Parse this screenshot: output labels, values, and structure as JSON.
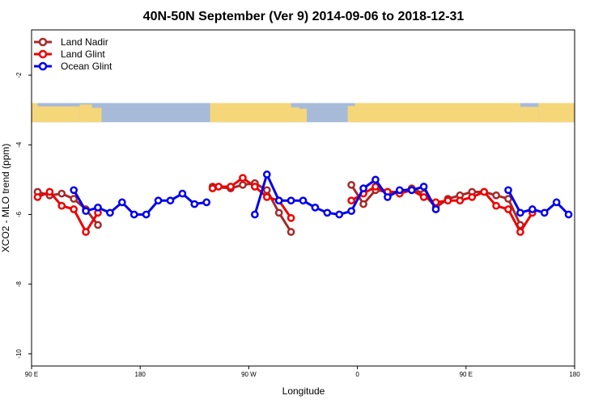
{
  "chart_data": {
    "type": "line",
    "title": "40N-50N September (Ver 9)   2014-09-06 to 2018-12-31",
    "xlabel": "Longitude",
    "ylabel": "XCO2 - MLO trend (ppm)",
    "x_ticks": [
      {
        "label": "90 E",
        "value": 0
      },
      {
        "label": "180",
        "value": 90
      },
      {
        "label": "90 W",
        "value": 180
      },
      {
        "label": "0",
        "value": 270
      },
      {
        "label": "90 E",
        "value": 360
      },
      {
        "label": "180",
        "value": 450
      }
    ],
    "y_ticks": [
      {
        "label": "-2",
        "value": -2
      },
      {
        "label": "-4",
        "value": -4
      },
      {
        "label": "-6",
        "value": -6
      },
      {
        "label": "-8",
        "value": -8
      },
      {
        "label": "-10",
        "value": -10
      }
    ],
    "xlim": [
      0,
      450
    ],
    "ylim": [
      -10.35,
      -0.7
    ],
    "map_strip": {
      "y_top": -2.8,
      "y_bottom": -3.35,
      "land_color": "#f5d77a",
      "ocean_color": "#a7bbd9"
    },
    "legend_position": "top-left",
    "series": [
      {
        "name": "Land Nadir",
        "color": "#a52a2a",
        "segments": [
          [
            [
              5,
              -5.35
            ],
            [
              15,
              -5.45
            ],
            [
              25,
              -5.4
            ],
            [
              35,
              -5.55
            ],
            [
              45,
              -5.85
            ],
            [
              55,
              -6.3
            ]
          ],
          [
            [
              150,
              -5.2
            ],
            [
              165,
              -5.25
            ],
            [
              175,
              -5.15
            ],
            [
              185,
              -5.1
            ],
            [
              195,
              -5.3
            ],
            [
              205,
              -5.95
            ],
            [
              215,
              -6.5
            ]
          ],
          [
            [
              265,
              -5.15
            ],
            [
              275,
              -5.7
            ],
            [
              285,
              -5.3
            ],
            [
              295,
              -5.35
            ],
            [
              305,
              -5.35
            ],
            [
              315,
              -5.25
            ],
            [
              325,
              -5.4
            ],
            [
              335,
              -5.8
            ],
            [
              345,
              -5.55
            ],
            [
              355,
              -5.45
            ],
            [
              365,
              -5.35
            ],
            [
              375,
              -5.35
            ],
            [
              385,
              -5.45
            ],
            [
              395,
              -5.55
            ],
            [
              405,
              -6.3
            ]
          ]
        ]
      },
      {
        "name": "Land Glint",
        "color": "#ee0000",
        "segments": [
          [
            [
              5,
              -5.5
            ],
            [
              15,
              -5.35
            ],
            [
              25,
              -5.75
            ],
            [
              35,
              -5.85
            ],
            [
              45,
              -6.5
            ],
            [
              55,
              -5.95
            ]
          ],
          [
            [
              150,
              -5.25
            ],
            [
              155,
              -5.2
            ],
            [
              165,
              -5.2
            ],
            [
              175,
              -4.95
            ],
            [
              185,
              -5.2
            ],
            [
              195,
              -5.5
            ],
            [
              205,
              -5.6
            ],
            [
              215,
              -6.1
            ]
          ],
          [
            [
              265,
              -5.6
            ],
            [
              275,
              -5.4
            ],
            [
              285,
              -5.2
            ],
            [
              295,
              -5.35
            ],
            [
              305,
              -5.4
            ],
            [
              315,
              -5.3
            ],
            [
              325,
              -5.5
            ],
            [
              335,
              -5.65
            ],
            [
              345,
              -5.6
            ],
            [
              355,
              -5.6
            ],
            [
              365,
              -5.5
            ],
            [
              375,
              -5.35
            ],
            [
              385,
              -5.75
            ],
            [
              395,
              -5.85
            ],
            [
              405,
              -6.5
            ],
            [
              415,
              -5.95
            ]
          ]
        ]
      },
      {
        "name": "Ocean Glint",
        "color": "#0000ee",
        "segments": [
          [
            [
              35,
              -5.3
            ],
            [
              45,
              -5.9
            ],
            [
              55,
              -5.8
            ],
            [
              65,
              -5.95
            ],
            [
              75,
              -5.65
            ],
            [
              85,
              -6.0
            ],
            [
              95,
              -6.0
            ],
            [
              105,
              -5.6
            ],
            [
              115,
              -5.6
            ],
            [
              125,
              -5.4
            ],
            [
              135,
              -5.7
            ],
            [
              145,
              -5.65
            ]
          ],
          [
            [
              185,
              -6.0
            ],
            [
              195,
              -4.85
            ],
            [
              205,
              -5.6
            ],
            [
              215,
              -5.6
            ],
            [
              225,
              -5.6
            ],
            [
              235,
              -5.8
            ],
            [
              245,
              -5.95
            ],
            [
              255,
              -6.0
            ],
            [
              265,
              -5.9
            ],
            [
              275,
              -5.25
            ],
            [
              285,
              -5.0
            ],
            [
              295,
              -5.5
            ],
            [
              305,
              -5.3
            ],
            [
              315,
              -5.3
            ],
            [
              325,
              -5.2
            ],
            [
              335,
              -5.85
            ]
          ],
          [
            [
              395,
              -5.3
            ],
            [
              405,
              -5.95
            ],
            [
              415,
              -5.85
            ],
            [
              425,
              -5.95
            ],
            [
              435,
              -5.65
            ],
            [
              445,
              -6.0
            ]
          ]
        ]
      }
    ]
  }
}
